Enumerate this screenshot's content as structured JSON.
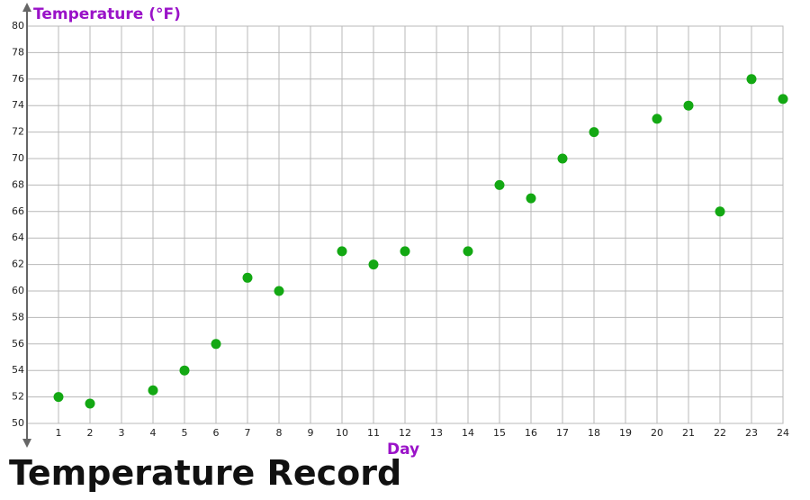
{
  "chart_data": {
    "type": "scatter",
    "title": "Temperature Record",
    "x_label": "Day",
    "y_label": "Temperature (°F)",
    "x": [
      1,
      2,
      4,
      5,
      6,
      7,
      8,
      10,
      11,
      12,
      14,
      15,
      16,
      17,
      18,
      20,
      21,
      22,
      23,
      24
    ],
    "values": [
      52,
      51.5,
      52.5,
      54,
      56,
      61,
      60,
      63,
      62,
      63,
      63,
      68,
      67,
      70,
      72,
      73,
      74,
      66,
      76,
      74.5
    ],
    "color": "#13a813",
    "xlim": [
      0,
      24
    ],
    "xticks": [
      1,
      2,
      3,
      4,
      5,
      6,
      7,
      8,
      9,
      10,
      11,
      12,
      13,
      14,
      15,
      16,
      17,
      18,
      19,
      20,
      21,
      22,
      23,
      24
    ],
    "ylim": [
      50,
      80
    ],
    "yticks": [
      50,
      52,
      54,
      56,
      58,
      60,
      62,
      64,
      66,
      68,
      70,
      72,
      74,
      76,
      78,
      80
    ],
    "grid": true
  }
}
